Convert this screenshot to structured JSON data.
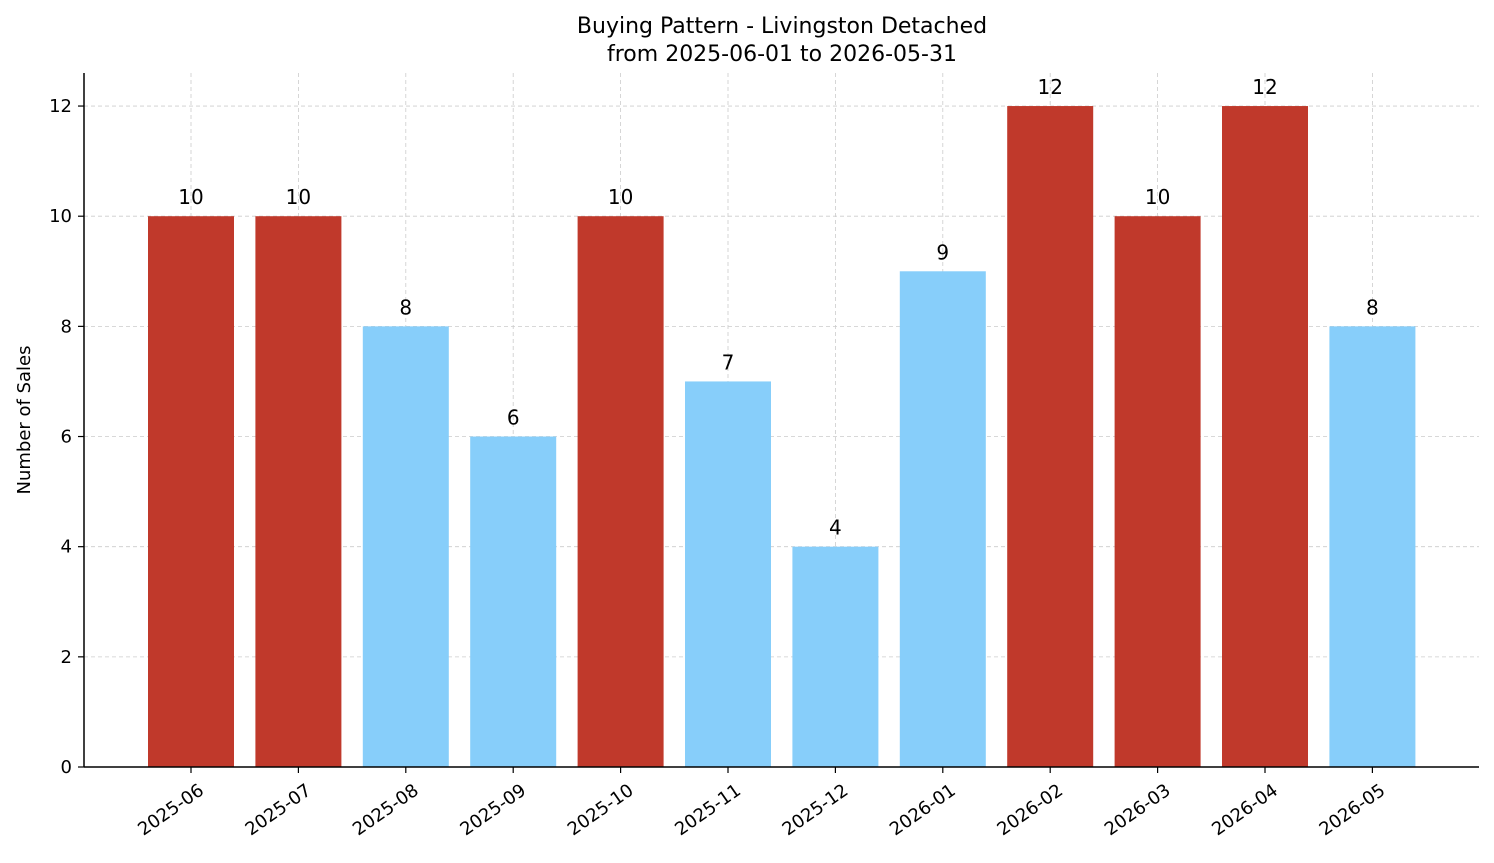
{
  "chart_data": {
    "type": "bar",
    "title": "Buying Pattern - Livingston Detached",
    "subtitle": "from 2025-06-01 to 2026-05-31",
    "xlabel": "",
    "ylabel": "Number of Sales",
    "categories": [
      "2025-06",
      "2025-07",
      "2025-08",
      "2025-09",
      "2025-10",
      "2025-11",
      "2025-12",
      "2026-01",
      "2026-02",
      "2026-03",
      "2026-04",
      "2026-05"
    ],
    "values": [
      10,
      10,
      8,
      6,
      10,
      7,
      4,
      9,
      12,
      10,
      12,
      8
    ],
    "bar_colors": [
      "#c0392b",
      "#c0392b",
      "#87cefa",
      "#87cefa",
      "#c0392b",
      "#87cefa",
      "#87cefa",
      "#87cefa",
      "#c0392b",
      "#c0392b",
      "#c0392b",
      "#87cefa"
    ],
    "yticks": [
      0,
      2,
      4,
      6,
      8,
      10,
      12
    ],
    "ylim": [
      0,
      12.6
    ],
    "grid": true,
    "data_labels": true
  }
}
